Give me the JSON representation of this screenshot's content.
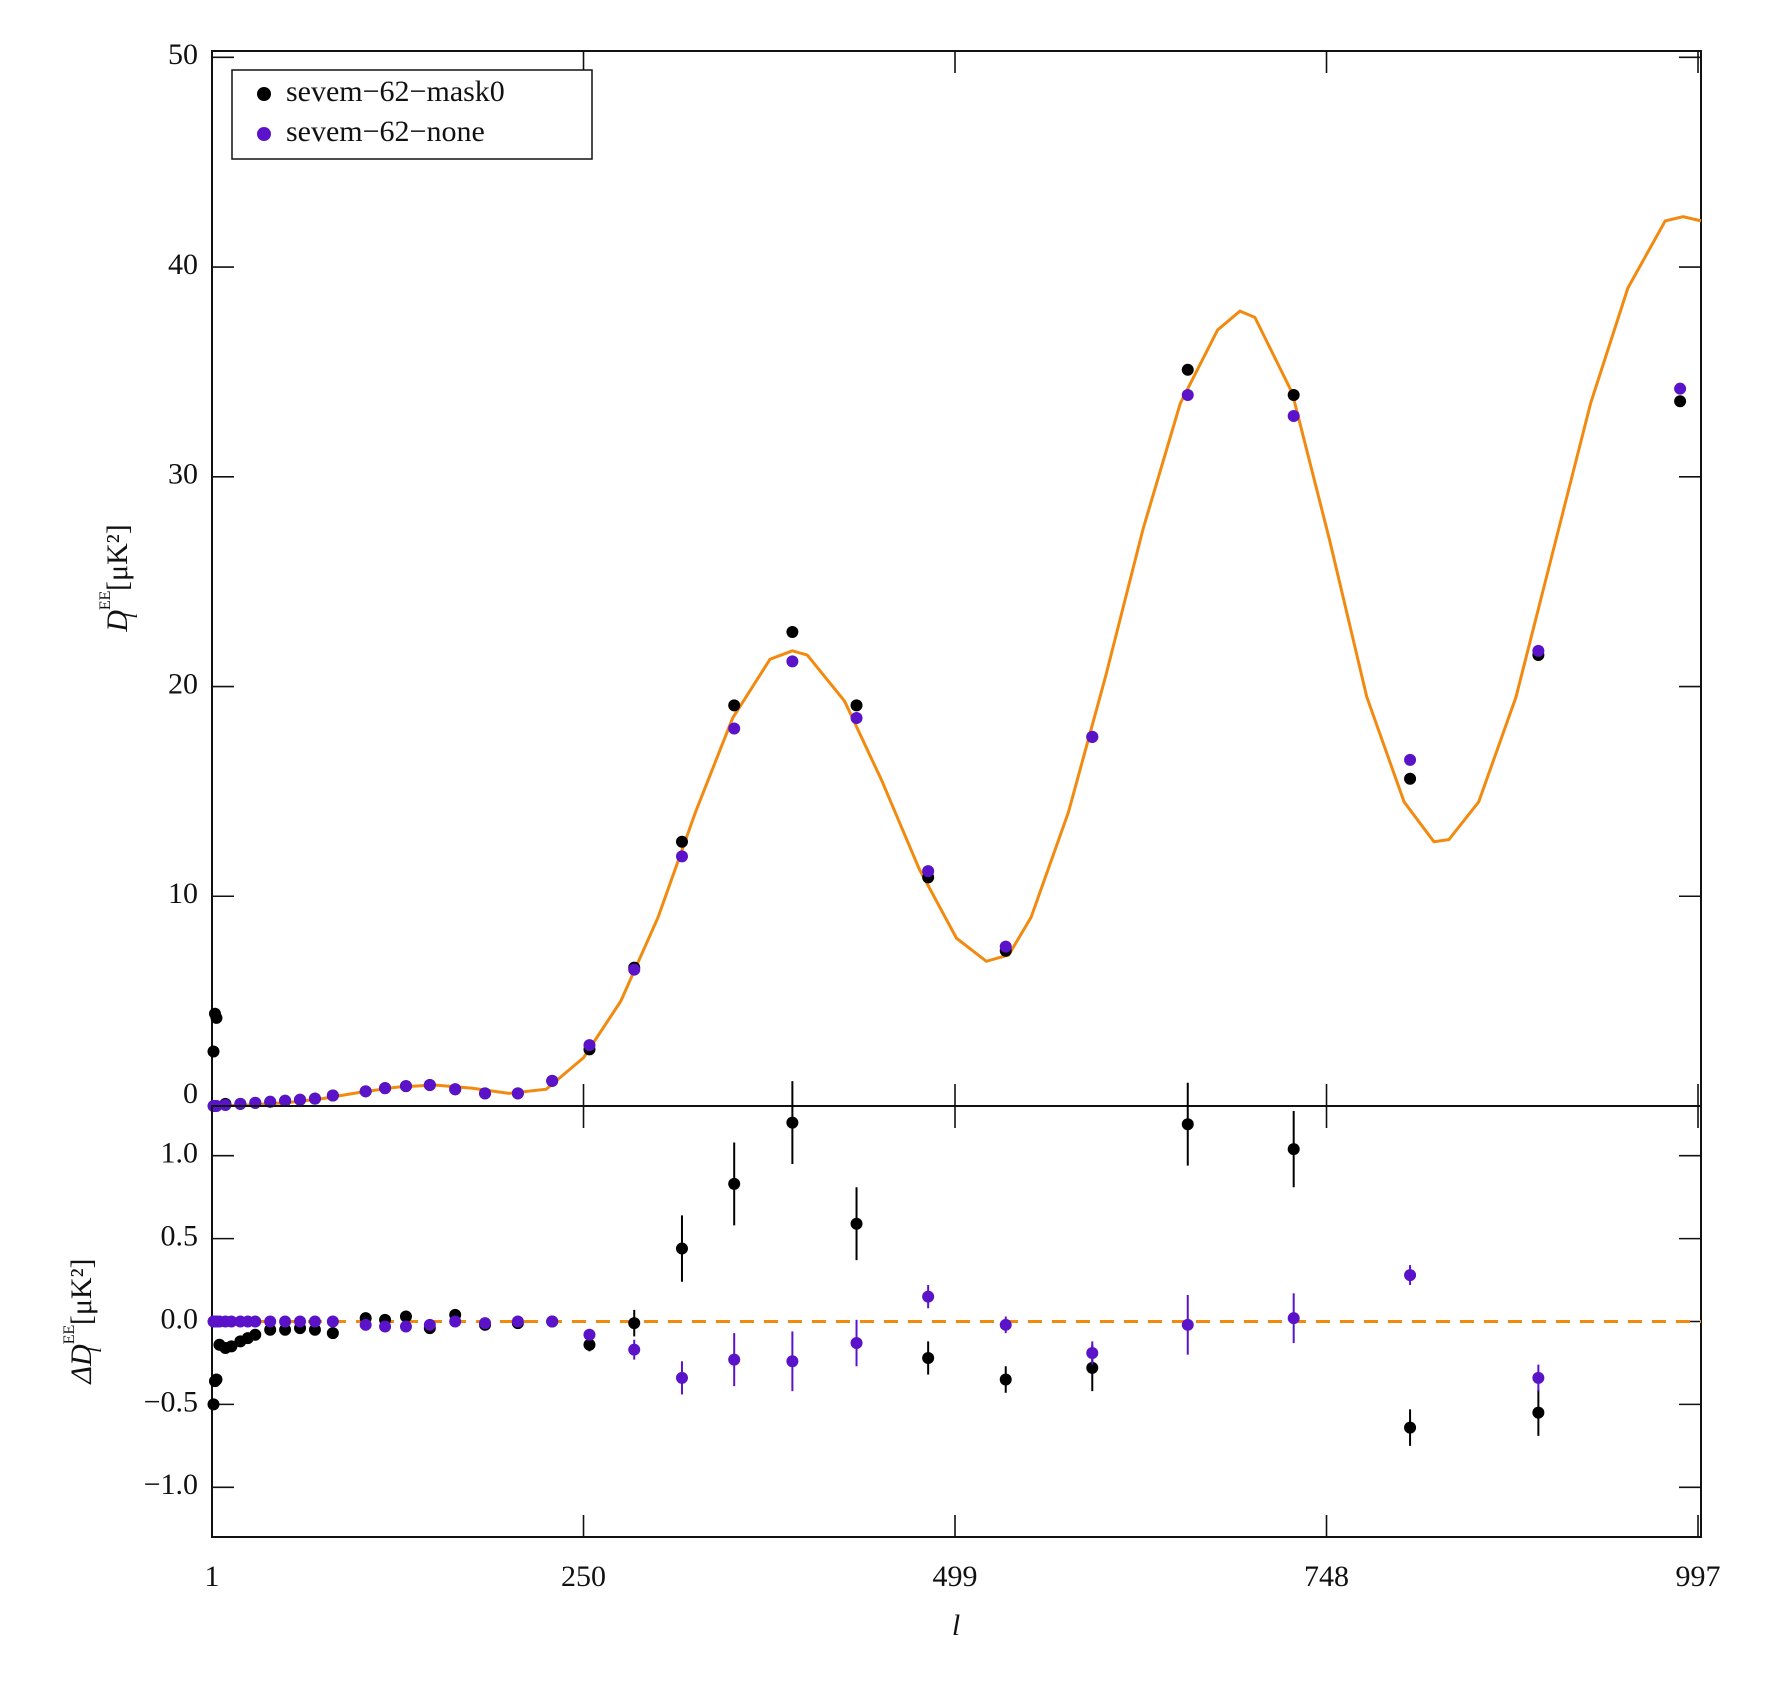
{
  "chart_data": [
    {
      "type": "scatter",
      "ylabel": {
        "symbol": "D",
        "subscript": "l",
        "superscript": "EE",
        "unit": "[μK²]"
      },
      "xlim": [
        1,
        999
      ],
      "xticks": [
        1,
        250,
        499,
        748,
        997
      ],
      "ylim": [
        0,
        50.3
      ],
      "yticks": [
        0,
        10,
        20,
        30,
        40,
        50
      ],
      "legend": "upper left",
      "x": [
        2,
        3,
        4,
        10,
        20,
        30,
        40,
        50,
        60,
        70,
        82,
        104,
        117,
        131,
        147,
        164,
        184,
        206,
        229,
        254,
        284,
        316,
        351,
        390,
        433,
        481,
        533,
        591,
        655,
        726,
        804,
        890,
        985
      ],
      "series": [
        {
          "name": "sevem−62−mask0",
          "color": "#000000",
          "values": [
            2.6,
            4.4,
            4.2,
            0.1,
            0.1,
            0.15,
            0.2,
            0.25,
            0.3,
            0.35,
            0.5,
            0.7,
            0.85,
            0.95,
            1.0,
            0.8,
            0.6,
            0.6,
            1.2,
            2.7,
            6.6,
            12.6,
            19.1,
            22.6,
            19.1,
            10.9,
            7.4,
            17.6,
            35.1,
            33.9,
            15.6,
            21.5,
            33.6
          ]
        },
        {
          "name": "sevem−62−none",
          "color": "#5a13c8",
          "values": [
            0,
            0,
            0,
            0.05,
            0.1,
            0.15,
            0.2,
            0.25,
            0.3,
            0.35,
            0.5,
            0.7,
            0.85,
            0.95,
            1.0,
            0.8,
            0.6,
            0.6,
            1.2,
            2.9,
            6.5,
            11.9,
            18.0,
            21.2,
            18.5,
            11.2,
            7.6,
            17.6,
            33.9,
            32.9,
            16.5,
            21.7,
            34.2
          ]
        }
      ],
      "curve": {
        "color": "#f28a10",
        "x": [
          1,
          25,
          50,
          75,
          100,
          125,
          150,
          175,
          200,
          225,
          250,
          275,
          300,
          325,
          350,
          375,
          390,
          400,
          425,
          450,
          475,
          500,
          520,
          535,
          550,
          575,
          600,
          625,
          650,
          675,
          690,
          700,
          725,
          750,
          775,
          800,
          820,
          830,
          850,
          875,
          900,
          925,
          950,
          975,
          987,
          999
        ],
        "values": [
          0,
          0.05,
          0.15,
          0.35,
          0.65,
          0.9,
          1.0,
          0.85,
          0.6,
          0.8,
          2.3,
          5.0,
          9.0,
          14.0,
          18.5,
          21.3,
          21.7,
          21.5,
          19.3,
          15.5,
          11.3,
          8.0,
          6.9,
          7.2,
          9.0,
          14.0,
          20.5,
          27.5,
          33.5,
          37.0,
          37.9,
          37.6,
          34.0,
          27.0,
          19.5,
          14.5,
          12.6,
          12.7,
          14.5,
          19.5,
          26.5,
          33.5,
          39.0,
          42.2,
          42.4,
          42.2
        ]
      }
    },
    {
      "type": "errorbar",
      "xlabel": "l",
      "ylabel": {
        "symbol": "ΔD",
        "subscript": "l",
        "superscript": "EE",
        "unit": "[μK²]"
      },
      "xlim": [
        1,
        999
      ],
      "xticks": [
        1,
        250,
        499,
        748,
        997
      ],
      "ylim": [
        -1.3,
        1.3
      ],
      "yticks": [
        {
          "value": -1.0,
          "label": "−1.0"
        },
        {
          "value": -0.5,
          "label": "−0.5"
        },
        {
          "value": 0,
          "label": "0.0"
        },
        {
          "value": 0.5,
          "label": "0.5"
        },
        {
          "value": 1.0,
          "label": "1.0"
        }
      ],
      "x": [
        2,
        3,
        4,
        6,
        10,
        14,
        20,
        25,
        30,
        40,
        50,
        60,
        70,
        82,
        104,
        117,
        131,
        147,
        164,
        184,
        206,
        229,
        254,
        284,
        316,
        351,
        390,
        433,
        481,
        533,
        591,
        655,
        726,
        804,
        890
      ],
      "series": [
        {
          "color": "#000000",
          "values": [
            -0.5,
            -0.36,
            -0.35,
            -0.14,
            -0.16,
            -0.15,
            -0.12,
            -0.1,
            -0.08,
            -0.05,
            -0.05,
            -0.04,
            -0.05,
            -0.07,
            0.02,
            0.01,
            0.03,
            -0.04,
            0.04,
            -0.02,
            -0.01,
            0.0,
            -0.14,
            -0.01,
            0.44,
            0.83,
            1.2,
            0.59,
            -0.22,
            -0.35,
            -0.28,
            1.19,
            1.04,
            -0.64,
            -0.55
          ],
          "errors": [
            0.02,
            0.02,
            0.02,
            0.02,
            0.02,
            0.02,
            0.02,
            0.02,
            0.02,
            0.02,
            0.02,
            0.02,
            0.02,
            0.02,
            0.02,
            0.02,
            0.02,
            0.02,
            0.02,
            0.02,
            0.02,
            0.02,
            0.04,
            0.08,
            0.2,
            0.25,
            0.25,
            0.22,
            0.1,
            0.08,
            0.14,
            0.25,
            0.23,
            0.11,
            0.14
          ]
        },
        {
          "color": "#5a13c8",
          "values": [
            0,
            0,
            0,
            0,
            0,
            0,
            0,
            0,
            0,
            0,
            0,
            0,
            0,
            0,
            -0.02,
            -0.03,
            -0.03,
            -0.02,
            0.0,
            -0.01,
            0.0,
            0.0,
            -0.08,
            -0.17,
            -0.34,
            -0.23,
            -0.24,
            -0.13,
            0.15,
            -0.02,
            -0.19,
            -0.02,
            0.02,
            0.28,
            -0.34
          ],
          "errors": [
            0.01,
            0.01,
            0.01,
            0.01,
            0.01,
            0.01,
            0.01,
            0.01,
            0.01,
            0.01,
            0.01,
            0.01,
            0.01,
            0.01,
            0.01,
            0.01,
            0.01,
            0.01,
            0.01,
            0.01,
            0.01,
            0.01,
            0.03,
            0.06,
            0.1,
            0.16,
            0.18,
            0.14,
            0.07,
            0.05,
            0.07,
            0.18,
            0.15,
            0.06,
            0.08
          ]
        }
      ],
      "reference_line": {
        "value": 0,
        "color": "#f28a10",
        "dashed": true
      }
    }
  ]
}
